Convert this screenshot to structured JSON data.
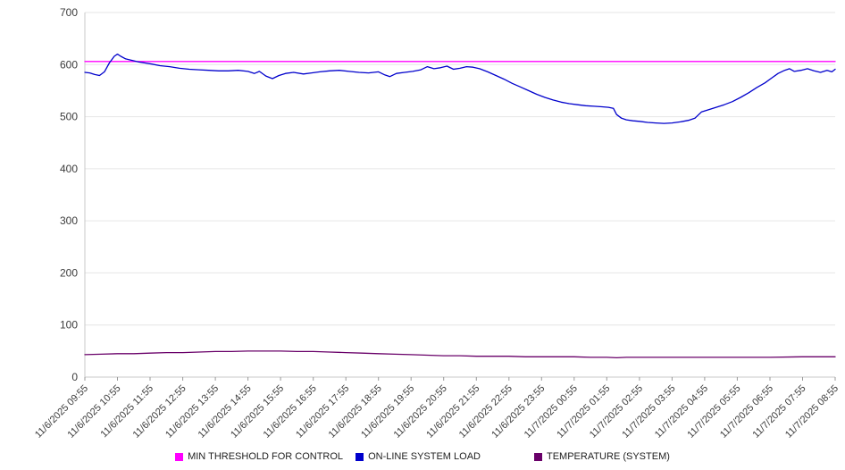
{
  "chart_data": {
    "type": "line",
    "title": "",
    "xlabel": "",
    "ylabel": "",
    "ylim": [
      0,
      700
    ],
    "y_ticks": [
      0,
      100,
      200,
      300,
      400,
      500,
      600,
      700
    ],
    "x_range_hours": [
      0,
      23
    ],
    "grid": true,
    "legend_position": "bottom",
    "x_labels": [
      "11/6/2025 09:55",
      "11/6/2025 10:55",
      "11/6/2025 11:55",
      "11/6/2025 12:55",
      "11/6/2025 13:55",
      "11/6/2025 14:55",
      "11/6/2025 15:55",
      "11/6/2025 16:55",
      "11/6/2025 17:55",
      "11/6/2025 18:55",
      "11/6/2025 19:55",
      "11/6/2025 20:55",
      "11/6/2025 21:55",
      "11/6/2025 22:55",
      "11/6/2025 23:55",
      "11/7/2025 00:55",
      "11/7/2025 01:55",
      "11/7/2025 02:55",
      "11/7/2025 03:55",
      "11/7/2025 04:55",
      "11/7/2025 05:55",
      "11/7/2025 06:55",
      "11/7/2025 07:55",
      "11/7/2025 08:55"
    ],
    "series": [
      {
        "name": "MIN THRESHOLD FOR CONTROL",
        "color": "#ff00ff",
        "points": [
          [
            0,
            606
          ],
          [
            23,
            606
          ]
        ]
      },
      {
        "name": "ON-LINE SYSTEM LOAD",
        "color": "#0000cc",
        "points": [
          [
            0,
            585
          ],
          [
            0.15,
            584
          ],
          [
            0.3,
            581
          ],
          [
            0.45,
            579
          ],
          [
            0.6,
            586
          ],
          [
            0.75,
            603
          ],
          [
            0.9,
            616
          ],
          [
            1.0,
            620
          ],
          [
            1.1,
            616
          ],
          [
            1.25,
            611
          ],
          [
            1.45,
            608
          ],
          [
            1.65,
            605
          ],
          [
            1.85,
            603
          ],
          [
            2.05,
            601
          ],
          [
            2.3,
            598
          ],
          [
            2.6,
            596
          ],
          [
            2.9,
            593
          ],
          [
            3.2,
            591
          ],
          [
            3.5,
            590
          ],
          [
            3.8,
            589
          ],
          [
            4.1,
            588
          ],
          [
            4.4,
            588
          ],
          [
            4.7,
            589
          ],
          [
            5.0,
            587
          ],
          [
            5.2,
            583
          ],
          [
            5.35,
            587
          ],
          [
            5.55,
            578
          ],
          [
            5.75,
            573
          ],
          [
            5.95,
            579
          ],
          [
            6.15,
            583
          ],
          [
            6.4,
            585
          ],
          [
            6.7,
            582
          ],
          [
            6.95,
            584
          ],
          [
            7.2,
            586
          ],
          [
            7.5,
            588
          ],
          [
            7.8,
            589
          ],
          [
            8.1,
            587
          ],
          [
            8.4,
            585
          ],
          [
            8.7,
            584
          ],
          [
            9.0,
            586
          ],
          [
            9.2,
            580
          ],
          [
            9.35,
            577
          ],
          [
            9.55,
            583
          ],
          [
            9.8,
            585
          ],
          [
            10.05,
            587
          ],
          [
            10.3,
            590
          ],
          [
            10.5,
            596
          ],
          [
            10.7,
            592
          ],
          [
            10.9,
            594
          ],
          [
            11.1,
            597
          ],
          [
            11.3,
            591
          ],
          [
            11.5,
            593
          ],
          [
            11.7,
            596
          ],
          [
            11.9,
            595
          ],
          [
            12.1,
            592
          ],
          [
            12.35,
            586
          ],
          [
            12.6,
            579
          ],
          [
            12.85,
            572
          ],
          [
            13.1,
            564
          ],
          [
            13.35,
            557
          ],
          [
            13.6,
            550
          ],
          [
            13.85,
            543
          ],
          [
            14.1,
            537
          ],
          [
            14.35,
            532
          ],
          [
            14.6,
            528
          ],
          [
            14.85,
            525
          ],
          [
            15.1,
            523
          ],
          [
            15.35,
            521
          ],
          [
            15.6,
            520
          ],
          [
            15.85,
            519
          ],
          [
            16.05,
            518
          ],
          [
            16.2,
            516
          ],
          [
            16.3,
            504
          ],
          [
            16.45,
            497
          ],
          [
            16.6,
            494
          ],
          [
            16.8,
            492
          ],
          [
            17.0,
            491
          ],
          [
            17.25,
            489
          ],
          [
            17.5,
            488
          ],
          [
            17.75,
            487
          ],
          [
            18.0,
            488
          ],
          [
            18.25,
            490
          ],
          [
            18.5,
            493
          ],
          [
            18.7,
            497
          ],
          [
            18.8,
            503
          ],
          [
            18.9,
            509
          ],
          [
            19.1,
            513
          ],
          [
            19.35,
            518
          ],
          [
            19.6,
            523
          ],
          [
            19.85,
            529
          ],
          [
            20.1,
            537
          ],
          [
            20.35,
            546
          ],
          [
            20.6,
            556
          ],
          [
            20.85,
            565
          ],
          [
            21.05,
            574
          ],
          [
            21.25,
            583
          ],
          [
            21.45,
            589
          ],
          [
            21.6,
            592
          ],
          [
            21.75,
            587
          ],
          [
            21.95,
            589
          ],
          [
            22.15,
            592
          ],
          [
            22.35,
            588
          ],
          [
            22.55,
            585
          ],
          [
            22.75,
            589
          ],
          [
            22.9,
            586
          ],
          [
            23.0,
            591
          ]
        ]
      },
      {
        "name": "TEMPERATURE (SYSTEM)",
        "color": "#690069",
        "points": [
          [
            0,
            43
          ],
          [
            0.5,
            44
          ],
          [
            1,
            45
          ],
          [
            1.5,
            45
          ],
          [
            2,
            46
          ],
          [
            2.5,
            47
          ],
          [
            3,
            47
          ],
          [
            3.5,
            48
          ],
          [
            4,
            49
          ],
          [
            4.5,
            49
          ],
          [
            5,
            50
          ],
          [
            5.5,
            50
          ],
          [
            6,
            50
          ],
          [
            6.5,
            49
          ],
          [
            7,
            49
          ],
          [
            7.5,
            48
          ],
          [
            8,
            47
          ],
          [
            8.5,
            46
          ],
          [
            9,
            45
          ],
          [
            9.5,
            44
          ],
          [
            10,
            43
          ],
          [
            10.5,
            42
          ],
          [
            11,
            41
          ],
          [
            11.5,
            41
          ],
          [
            12,
            40
          ],
          [
            12.5,
            40
          ],
          [
            13,
            40
          ],
          [
            13.5,
            39
          ],
          [
            14,
            39
          ],
          [
            14.5,
            39
          ],
          [
            15,
            39
          ],
          [
            15.5,
            38
          ],
          [
            16,
            38
          ],
          [
            16.3,
            37
          ],
          [
            16.6,
            38
          ],
          [
            17,
            38
          ],
          [
            18,
            38
          ],
          [
            19,
            38
          ],
          [
            20,
            38
          ],
          [
            21,
            38
          ],
          [
            22,
            39
          ],
          [
            23,
            39
          ]
        ]
      }
    ]
  }
}
